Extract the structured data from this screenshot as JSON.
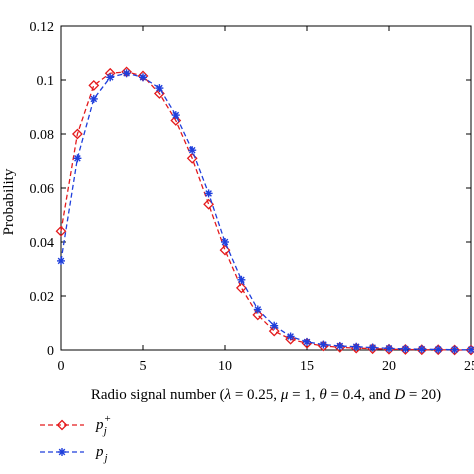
{
  "chart_data": {
    "type": "line",
    "xlabel_parts": {
      "prefix": "Radio signal number (",
      "lambda": "λ",
      "lambda_rest": " = 0.25, ",
      "mu": "μ",
      "mu_rest": " = 1, ",
      "theta": "θ",
      "theta_rest": " = 0.4, and ",
      "D": "D",
      "D_rest": " = 20)"
    },
    "ylabel": "Probability",
    "xlim": [
      0,
      25
    ],
    "ylim": [
      0,
      0.12
    ],
    "xticks": [
      "0",
      "5",
      "10",
      "15",
      "20",
      "25"
    ],
    "yticks": [
      "0",
      "0.02",
      "0.04",
      "0.06",
      "0.08",
      "0.1",
      "0.12"
    ],
    "grid": false,
    "legend_placement": "bottom-left, below the plot",
    "x": [
      0,
      1,
      2,
      3,
      4,
      5,
      6,
      7,
      8,
      9,
      10,
      11,
      12,
      13,
      14,
      15,
      16,
      17,
      18,
      19,
      20,
      21,
      22,
      23,
      24,
      25
    ],
    "series": [
      {
        "name": "p_j^+",
        "label_main": "p",
        "label_sub": "j",
        "label_sup": "+",
        "color": "#e41a1c",
        "marker": "diamond",
        "style": "dashed",
        "values": [
          0.044,
          0.08,
          0.098,
          0.1025,
          0.103,
          0.1015,
          0.095,
          0.085,
          0.071,
          0.054,
          0.037,
          0.023,
          0.013,
          0.007,
          0.004,
          0.0025,
          0.0015,
          0.001,
          0.0007,
          0.0005,
          0.0003,
          0.0002,
          0.0001,
          0.0001,
          0.0,
          0.0
        ]
      },
      {
        "name": "p_j",
        "label_main": "p",
        "label_sub": "j",
        "label_sup": "",
        "color": "#1f3fdc",
        "marker": "asterisk",
        "style": "dashed",
        "values": [
          0.033,
          0.071,
          0.093,
          0.101,
          0.1025,
          0.101,
          0.097,
          0.087,
          0.074,
          0.058,
          0.04,
          0.026,
          0.015,
          0.009,
          0.005,
          0.003,
          0.002,
          0.0015,
          0.0012,
          0.0009,
          0.0006,
          0.0004,
          0.0003,
          0.0002,
          0.0001,
          0.0001
        ]
      }
    ]
  }
}
